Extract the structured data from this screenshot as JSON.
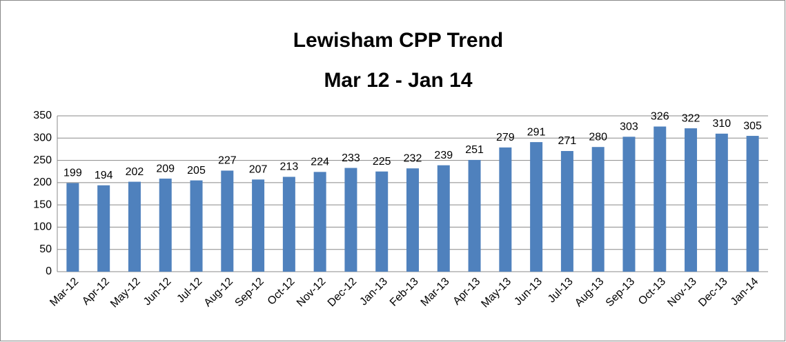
{
  "chart_data": {
    "type": "bar",
    "title": "Lewisham CPP Trend",
    "subtitle": "Mar 12 - Jan 14",
    "categories": [
      "Mar-12",
      "Apr-12",
      "May-12",
      "Jun-12",
      "Jul-12",
      "Aug-12",
      "Sep-12",
      "Oct-12",
      "Nov-12",
      "Dec-12",
      "Jan-13",
      "Feb-13",
      "Mar-13",
      "Apr-13",
      "May-13",
      "Jun-13",
      "Jul-13",
      "Aug-13",
      "Sep-13",
      "Oct-13",
      "Nov-13",
      "Dec-13",
      "Jan-14"
    ],
    "values": [
      199,
      194,
      202,
      209,
      205,
      227,
      207,
      213,
      224,
      233,
      225,
      232,
      239,
      251,
      279,
      291,
      271,
      280,
      303,
      326,
      322,
      310,
      305
    ],
    "color": "#4f81bd",
    "ylim": [
      0,
      350
    ],
    "yticks": [
      0,
      50,
      100,
      150,
      200,
      250,
      300,
      350
    ],
    "grid": true
  }
}
